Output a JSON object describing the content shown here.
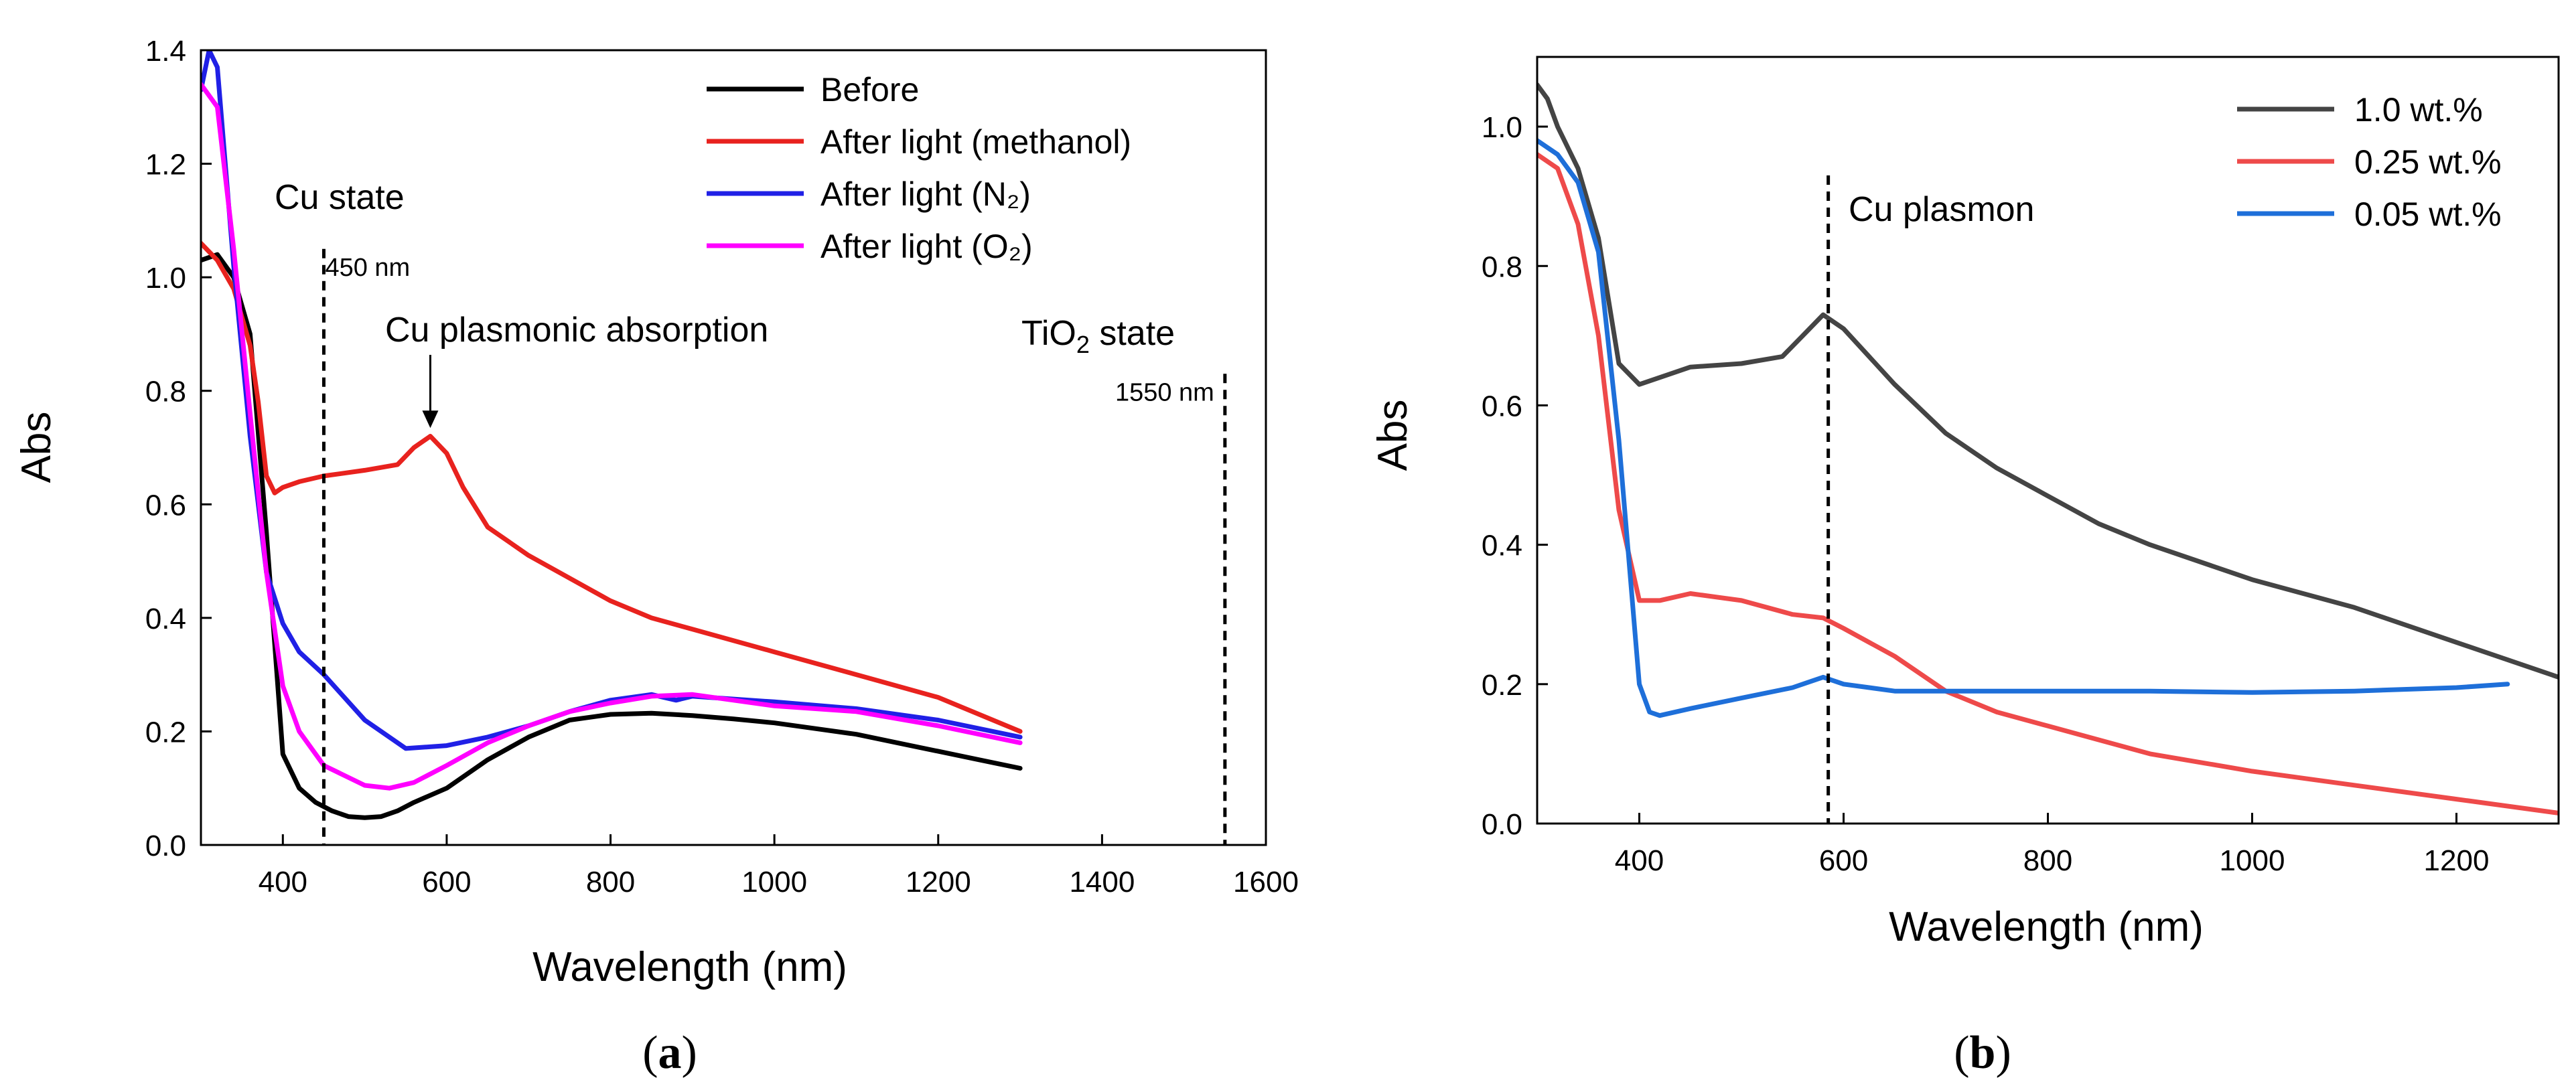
{
  "chart_data": [
    {
      "panel_label_parts": [
        "(",
        "a",
        ")"
      ],
      "type": "line",
      "xlabel": "Wavelength (nm)",
      "ylabel": "Abs",
      "xlim": [
        300,
        1600
      ],
      "ylim": [
        0.0,
        1.4
      ],
      "xticks": [
        400,
        600,
        800,
        1000,
        1200,
        1400,
        1600
      ],
      "yticks": [
        0.0,
        0.2,
        0.4,
        0.6,
        0.8,
        1.0,
        1.2,
        1.4
      ],
      "legend_position": "top-right",
      "series": [
        {
          "name": "Before",
          "color": "#000000",
          "x": [
            300,
            320,
            340,
            360,
            380,
            400,
            420,
            440,
            460,
            480,
            500,
            520,
            540,
            560,
            600,
            650,
            700,
            750,
            800,
            850,
            900,
            950,
            1000,
            1050,
            1100,
            1150,
            1200,
            1250,
            1300
          ],
          "y": [
            1.03,
            1.04,
            1.0,
            0.9,
            0.55,
            0.16,
            0.1,
            0.075,
            0.06,
            0.05,
            0.048,
            0.05,
            0.06,
            0.075,
            0.1,
            0.15,
            0.19,
            0.22,
            0.23,
            0.232,
            0.228,
            0.222,
            0.215,
            0.205,
            0.195,
            0.18,
            0.165,
            0.15,
            0.135
          ]
        },
        {
          "name": "After light (methanol)",
          "color": "#e8221e",
          "x": [
            300,
            320,
            340,
            360,
            370,
            380,
            390,
            400,
            420,
            450,
            500,
            540,
            560,
            580,
            600,
            620,
            650,
            700,
            800,
            850,
            900,
            1000,
            1100,
            1200,
            1300
          ],
          "y": [
            1.06,
            1.03,
            0.98,
            0.88,
            0.78,
            0.65,
            0.62,
            0.63,
            0.64,
            0.65,
            0.66,
            0.67,
            0.7,
            0.72,
            0.69,
            0.63,
            0.56,
            0.51,
            0.43,
            0.4,
            0.38,
            0.34,
            0.3,
            0.26,
            0.2
          ]
        },
        {
          "name": "After light (N₂)",
          "color": "#2020e6",
          "x": [
            300,
            310,
            320,
            340,
            360,
            380,
            400,
            420,
            450,
            500,
            550,
            600,
            650,
            700,
            750,
            800,
            850,
            880,
            900,
            1000,
            1100,
            1200,
            1300
          ],
          "y": [
            1.33,
            1.4,
            1.37,
            1.02,
            0.72,
            0.48,
            0.39,
            0.34,
            0.3,
            0.22,
            0.17,
            0.175,
            0.19,
            0.21,
            0.235,
            0.255,
            0.265,
            0.255,
            0.262,
            0.252,
            0.24,
            0.22,
            0.19
          ]
        },
        {
          "name": "After light (O₂)",
          "color": "#ff00ff",
          "x": [
            300,
            320,
            340,
            360,
            380,
            400,
            420,
            450,
            500,
            530,
            560,
            600,
            650,
            700,
            750,
            800,
            850,
            900,
            1000,
            1100,
            1200,
            1300
          ],
          "y": [
            1.34,
            1.3,
            1.05,
            0.76,
            0.48,
            0.28,
            0.2,
            0.14,
            0.105,
            0.1,
            0.11,
            0.14,
            0.18,
            0.21,
            0.235,
            0.25,
            0.262,
            0.265,
            0.245,
            0.235,
            0.21,
            0.18
          ]
        }
      ],
      "vlines": [
        {
          "x": 450,
          "label": "450 nm",
          "top": 1.05
        },
        {
          "x": 1550,
          "label": "1550 nm",
          "top": 0.83
        }
      ],
      "annotations": {
        "cu_state": "Cu state",
        "cu_plasmonic": "Cu plasmonic absorption",
        "tio2_parts": [
          "TiO",
          "2",
          " state"
        ],
        "arrow_target": {
          "x": 580,
          "y": 0.725
        }
      }
    },
    {
      "panel_label_parts": [
        "(",
        "b",
        ")"
      ],
      "type": "line",
      "xlabel": "Wavelength (nm)",
      "ylabel": "Abs",
      "xlim": [
        300,
        1300
      ],
      "ylim": [
        0.0,
        1.1
      ],
      "xticks": [
        400,
        600,
        800,
        1000,
        1200
      ],
      "yticks": [
        0.0,
        0.2,
        0.4,
        0.6,
        0.8,
        1.0
      ],
      "legend_position": "top-right",
      "series": [
        {
          "name": "1.0 wt.%",
          "color": "#444444",
          "x": [
            300,
            310,
            320,
            340,
            360,
            380,
            400,
            420,
            450,
            500,
            540,
            560,
            580,
            600,
            650,
            700,
            750,
            800,
            850,
            900,
            1000,
            1100,
            1200,
            1300
          ],
          "y": [
            1.06,
            1.04,
            1.0,
            0.94,
            0.84,
            0.66,
            0.63,
            0.64,
            0.655,
            0.66,
            0.67,
            0.7,
            0.73,
            0.71,
            0.63,
            0.56,
            0.51,
            0.47,
            0.43,
            0.4,
            0.35,
            0.31,
            0.26,
            0.21
          ]
        },
        {
          "name": "0.25 wt.%",
          "color": "#ee4a4a",
          "x": [
            300,
            320,
            340,
            360,
            380,
            400,
            420,
            450,
            500,
            550,
            580,
            600,
            650,
            700,
            750,
            800,
            850,
            900,
            1000,
            1100,
            1200,
            1300
          ],
          "y": [
            0.96,
            0.94,
            0.86,
            0.7,
            0.45,
            0.32,
            0.32,
            0.33,
            0.32,
            0.3,
            0.295,
            0.28,
            0.24,
            0.19,
            0.16,
            0.14,
            0.12,
            0.1,
            0.075,
            0.055,
            0.035,
            0.015
          ]
        },
        {
          "name": "0.05 wt.%",
          "color": "#1e6fd9",
          "x": [
            300,
            320,
            340,
            360,
            380,
            400,
            410,
            420,
            450,
            500,
            550,
            580,
            600,
            650,
            700,
            800,
            900,
            1000,
            1100,
            1200,
            1250
          ],
          "y": [
            0.98,
            0.96,
            0.92,
            0.82,
            0.55,
            0.2,
            0.16,
            0.155,
            0.165,
            0.18,
            0.195,
            0.21,
            0.2,
            0.19,
            0.19,
            0.19,
            0.19,
            0.188,
            0.19,
            0.195,
            0.2
          ]
        }
      ],
      "vlines": [
        {
          "x": 585,
          "top": 0.93
        }
      ],
      "annotations": {
        "cu_plasmon": "Cu plasmon"
      }
    }
  ]
}
